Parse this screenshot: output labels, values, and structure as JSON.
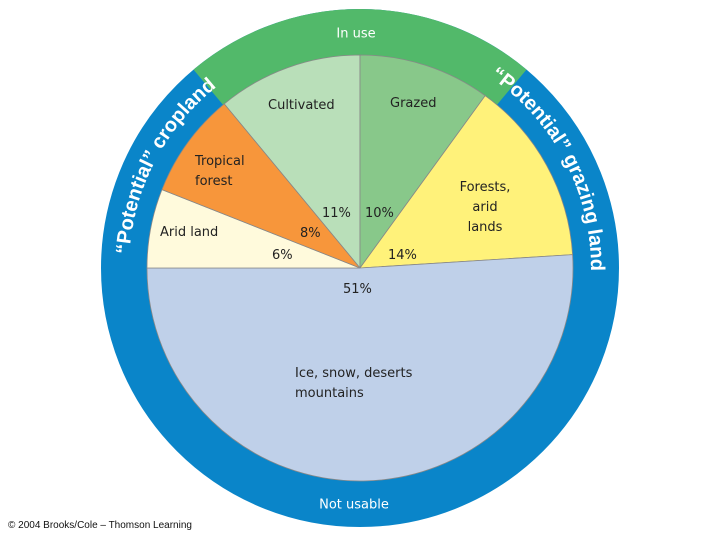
{
  "chart_data": {
    "type": "pie",
    "categories": [
      "Cultivated",
      "Grazed",
      "Forests, arid lands",
      "Ice, snow, deserts mountains",
      "Arid land",
      "Tropical forest"
    ],
    "values": [
      11,
      10,
      14,
      51,
      6,
      8
    ],
    "value_labels": [
      "11%",
      "10%",
      "14%",
      "51%",
      "6%",
      "8%"
    ],
    "colors": [
      "#b9dfb9",
      "#88c88a",
      "#fff27a",
      "#bfd0e9",
      "#fffadc",
      "#f7963b"
    ],
    "ring_color": "#0a85c9",
    "groups": [
      {
        "label": "In use",
        "color": "#52b96a"
      },
      {
        "label": "“Potential” cropland"
      },
      {
        "label": "“Potential” grazing land"
      },
      {
        "label": "Not usable"
      }
    ],
    "source": "© 2004 Brooks/Cole – Thomson Learning"
  }
}
